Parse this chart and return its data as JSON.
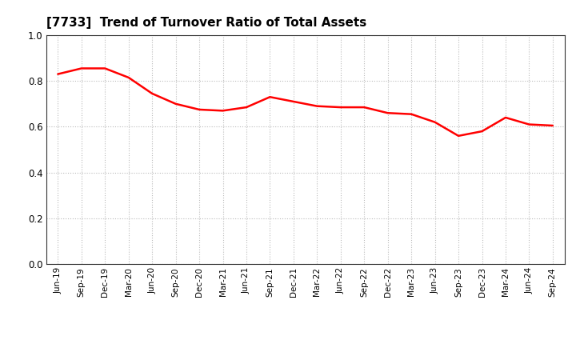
{
  "title": "[7733]  Trend of Turnover Ratio of Total Assets",
  "title_fontsize": 11,
  "title_fontweight": "bold",
  "line_color": "#ff0000",
  "line_width": 1.8,
  "background_color": "#ffffff",
  "plot_bg_color": "#ffffff",
  "grid_color": "#bbbbbb",
  "ylim": [
    0.0,
    1.0
  ],
  "yticks": [
    0.0,
    0.2,
    0.4,
    0.6,
    0.8,
    1.0
  ],
  "labels": [
    "Jun-19",
    "Sep-19",
    "Dec-19",
    "Mar-20",
    "Jun-20",
    "Sep-20",
    "Dec-20",
    "Mar-21",
    "Jun-21",
    "Sep-21",
    "Dec-21",
    "Mar-22",
    "Jun-22",
    "Sep-22",
    "Dec-22",
    "Mar-23",
    "Jun-23",
    "Sep-23",
    "Dec-23",
    "Mar-24",
    "Jun-24",
    "Sep-24"
  ],
  "values": [
    0.83,
    0.855,
    0.855,
    0.815,
    0.745,
    0.7,
    0.675,
    0.67,
    0.685,
    0.73,
    0.71,
    0.69,
    0.685,
    0.685,
    0.66,
    0.655,
    0.62,
    0.56,
    0.58,
    0.64,
    0.61,
    0.605
  ]
}
